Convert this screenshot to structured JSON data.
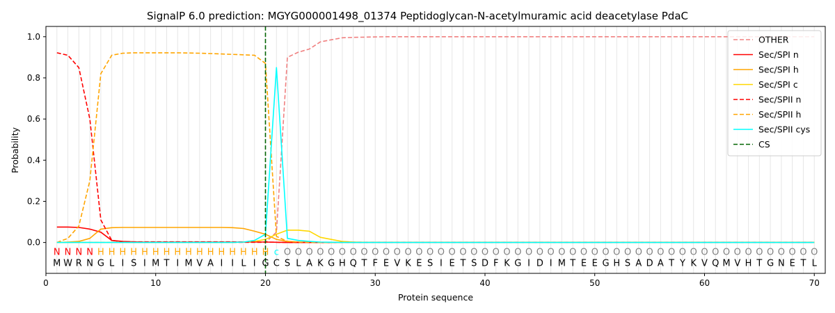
{
  "chart_data": {
    "type": "line",
    "title": "SignalP 6.0 prediction: MGYG000001498_01374 Peptidoglycan-N-acetylmuramic acid deacetylase PdaC",
    "xlabel": "Protein sequence",
    "ylabel": "Probability",
    "xlim": [
      0,
      71
    ],
    "ylim": [
      -0.15,
      1.05
    ],
    "xticks": [
      0,
      10,
      20,
      30,
      40,
      50,
      60,
      70
    ],
    "xtick_labels": [
      "0",
      "10",
      "20",
      "30",
      "40",
      "50",
      "60",
      "70"
    ],
    "yticks": [
      0.0,
      0.2,
      0.4,
      0.6,
      0.8,
      1.0
    ],
    "ytick_labels": [
      "0.0",
      "0.2",
      "0.4",
      "0.6",
      "0.8",
      "1.0"
    ],
    "grid": "vertical lines at each residue",
    "legend_position": "top-right",
    "sequence": [
      "M",
      "W",
      "R",
      "N",
      "G",
      "L",
      "I",
      "S",
      "I",
      "M",
      "T",
      "I",
      "M",
      "V",
      "A",
      "I",
      "I",
      "L",
      "I",
      "G",
      "C",
      "S",
      "L",
      "A",
      "K",
      "G",
      "H",
      "Q",
      "T",
      "F",
      "E",
      "V",
      "K",
      "E",
      "S",
      "I",
      "E",
      "T",
      "S",
      "D",
      "F",
      "K",
      "G",
      "I",
      "D",
      "I",
      "M",
      "T",
      "E",
      "E",
      "G",
      "H",
      "S",
      "A",
      "D",
      "A",
      "T",
      "Y",
      "K",
      "V",
      "Q",
      "M",
      "V",
      "H",
      "T",
      "G",
      "N",
      "E",
      "T",
      "L"
    ],
    "labels": [
      "N",
      "N",
      "N",
      "N",
      "H",
      "H",
      "H",
      "H",
      "H",
      "H",
      "H",
      "H",
      "H",
      "H",
      "H",
      "H",
      "H",
      "H",
      "H",
      "H",
      "c",
      "O",
      "O",
      "O",
      "O",
      "O",
      "O",
      "O",
      "O",
      "O",
      "O",
      "O",
      "O",
      "O",
      "O",
      "O",
      "O",
      "O",
      "O",
      "O",
      "O",
      "O",
      "O",
      "O",
      "O",
      "O",
      "O",
      "O",
      "O",
      "O",
      "O",
      "O",
      "O",
      "O",
      "O",
      "O",
      "O",
      "O",
      "O",
      "O",
      "O",
      "O",
      "O",
      "O",
      "O",
      "O",
      "O",
      "O",
      "O",
      "O"
    ],
    "label_colors": {
      "N": "#ff0000",
      "H": "#ffa500",
      "c": "#00ffff",
      "O": "#808080"
    },
    "cleavage_site": 20,
    "series": [
      {
        "name": "OTHER",
        "color": "#f08080",
        "dash": "dashed",
        "values": [
          0.0,
          0.0,
          0.0,
          0.0,
          0.0,
          0.0,
          0.0,
          0.0,
          0.0,
          0.0,
          0.0,
          0.0,
          0.0,
          0.0,
          0.0,
          0.0,
          0.0,
          0.0,
          0.0,
          0.0,
          0.05,
          0.9,
          0.925,
          0.94,
          0.975,
          0.985,
          0.995,
          0.997,
          0.998,
          0.999,
          1.0,
          1.0,
          1.0,
          1.0,
          1.0,
          1.0,
          1.0,
          1.0,
          1.0,
          1.0,
          1.0,
          1.0,
          1.0,
          1.0,
          1.0,
          1.0,
          1.0,
          1.0,
          1.0,
          1.0,
          1.0,
          1.0,
          1.0,
          1.0,
          1.0,
          1.0,
          1.0,
          1.0,
          1.0,
          1.0,
          1.0,
          1.0,
          1.0,
          1.0,
          1.0,
          1.0,
          1.0,
          1.0,
          1.0,
          1.0
        ]
      },
      {
        "name": "Sec/SPI n",
        "color": "#ff0000",
        "dash": "solid",
        "values": [
          0.075,
          0.075,
          0.073,
          0.065,
          0.05,
          0.01,
          0.005,
          0.003,
          0.002,
          0.002,
          0.002,
          0.002,
          0.002,
          0.002,
          0.002,
          0.002,
          0.002,
          0.002,
          0.002,
          0.002,
          0.001,
          0.0,
          0.0,
          0.0,
          0.0,
          0.0,
          0.0,
          0.0,
          0.0,
          0.0,
          0.0,
          0.0,
          0.0,
          0.0,
          0.0,
          0.0,
          0.0,
          0.0,
          0.0,
          0.0,
          0.0,
          0.0,
          0.0,
          0.0,
          0.0,
          0.0,
          0.0,
          0.0,
          0.0,
          0.0,
          0.0,
          0.0,
          0.0,
          0.0,
          0.0,
          0.0,
          0.0,
          0.0,
          0.0,
          0.0,
          0.0,
          0.0,
          0.0,
          0.0,
          0.0,
          0.0,
          0.0,
          0.0,
          0.0,
          0.0
        ]
      },
      {
        "name": "Sec/SPI h",
        "color": "#ffa500",
        "dash": "solid",
        "values": [
          0.0,
          0.002,
          0.005,
          0.02,
          0.065,
          0.072,
          0.073,
          0.073,
          0.073,
          0.073,
          0.073,
          0.073,
          0.073,
          0.073,
          0.073,
          0.073,
          0.072,
          0.068,
          0.055,
          0.04,
          0.015,
          0.005,
          0.002,
          0.001,
          0.0,
          0.0,
          0.0,
          0.0,
          0.0,
          0.0,
          0.0,
          0.0,
          0.0,
          0.0,
          0.0,
          0.0,
          0.0,
          0.0,
          0.0,
          0.0,
          0.0,
          0.0,
          0.0,
          0.0,
          0.0,
          0.0,
          0.0,
          0.0,
          0.0,
          0.0,
          0.0,
          0.0,
          0.0,
          0.0,
          0.0,
          0.0,
          0.0,
          0.0,
          0.0,
          0.0,
          0.0,
          0.0,
          0.0,
          0.0,
          0.0,
          0.0,
          0.0,
          0.0,
          0.0,
          0.0
        ]
      },
      {
        "name": "Sec/SPI c",
        "color": "#ffd700",
        "dash": "solid",
        "values": [
          0.0,
          0.0,
          0.0,
          0.0,
          0.0,
          0.0,
          0.0,
          0.0,
          0.0,
          0.0,
          0.0,
          0.0,
          0.0,
          0.0,
          0.0,
          0.0,
          0.0,
          0.002,
          0.005,
          0.015,
          0.04,
          0.06,
          0.06,
          0.055,
          0.025,
          0.015,
          0.005,
          0.002,
          0.001,
          0.0,
          0.0,
          0.0,
          0.0,
          0.0,
          0.0,
          0.0,
          0.0,
          0.0,
          0.0,
          0.0,
          0.0,
          0.0,
          0.0,
          0.0,
          0.0,
          0.0,
          0.0,
          0.0,
          0.0,
          0.0,
          0.0,
          0.0,
          0.0,
          0.0,
          0.0,
          0.0,
          0.0,
          0.0,
          0.0,
          0.0,
          0.0,
          0.0,
          0.0,
          0.0,
          0.0,
          0.0,
          0.0,
          0.0,
          0.0,
          0.0
        ]
      },
      {
        "name": "Sec/SPII n",
        "color": "#ff0000",
        "dash": "dashed",
        "values": [
          0.922,
          0.91,
          0.85,
          0.6,
          0.11,
          0.01,
          0.004,
          0.003,
          0.003,
          0.003,
          0.003,
          0.003,
          0.003,
          0.003,
          0.003,
          0.003,
          0.003,
          0.002,
          0.002,
          0.002,
          0.001,
          0.0,
          0.0,
          0.0,
          0.0,
          0.0,
          0.0,
          0.0,
          0.0,
          0.0,
          0.0,
          0.0,
          0.0,
          0.0,
          0.0,
          0.0,
          0.0,
          0.0,
          0.0,
          0.0,
          0.0,
          0.0,
          0.0,
          0.0,
          0.0,
          0.0,
          0.0,
          0.0,
          0.0,
          0.0,
          0.0,
          0.0,
          0.0,
          0.0,
          0.0,
          0.0,
          0.0,
          0.0,
          0.0,
          0.0,
          0.0,
          0.0,
          0.0,
          0.0,
          0.0,
          0.0,
          0.0,
          0.0,
          0.0,
          0.0
        ]
      },
      {
        "name": "Sec/SPII h",
        "color": "#ffa500",
        "dash": "dashed",
        "values": [
          0.0,
          0.02,
          0.08,
          0.3,
          0.82,
          0.91,
          0.92,
          0.922,
          0.922,
          0.922,
          0.922,
          0.922,
          0.921,
          0.92,
          0.918,
          0.916,
          0.914,
          0.912,
          0.91,
          0.87,
          0.03,
          0.005,
          0.002,
          0.001,
          0.0,
          0.0,
          0.0,
          0.0,
          0.0,
          0.0,
          0.0,
          0.0,
          0.0,
          0.0,
          0.0,
          0.0,
          0.0,
          0.0,
          0.0,
          0.0,
          0.0,
          0.0,
          0.0,
          0.0,
          0.0,
          0.0,
          0.0,
          0.0,
          0.0,
          0.0,
          0.0,
          0.0,
          0.0,
          0.0,
          0.0,
          0.0,
          0.0,
          0.0,
          0.0,
          0.0,
          0.0,
          0.0,
          0.0,
          0.0,
          0.0,
          0.0,
          0.0,
          0.0,
          0.0,
          0.0
        ]
      },
      {
        "name": "Sec/SPII cys",
        "color": "#00ffff",
        "dash": "solid",
        "values": [
          0.0,
          0.0,
          0.0,
          0.0,
          0.0,
          0.0,
          0.0,
          0.0,
          0.0,
          0.0,
          0.0,
          0.0,
          0.0,
          0.0,
          0.0,
          0.0,
          0.0,
          0.002,
          0.01,
          0.04,
          0.85,
          0.02,
          0.01,
          0.005,
          0.002,
          0.001,
          0.0,
          0.0,
          0.0,
          0.0,
          0.0,
          0.0,
          0.0,
          0.0,
          0.0,
          0.0,
          0.0,
          0.0,
          0.0,
          0.0,
          0.0,
          0.0,
          0.0,
          0.0,
          0.0,
          0.0,
          0.0,
          0.0,
          0.0,
          0.0,
          0.0,
          0.0,
          0.0,
          0.0,
          0.0,
          0.0,
          0.0,
          0.0,
          0.0,
          0.0,
          0.0,
          0.0,
          0.0,
          0.0,
          0.0,
          0.0,
          0.0,
          0.0,
          0.0,
          0.0
        ]
      }
    ],
    "cs_legend": {
      "name": "CS",
      "color": "#006400",
      "dash": "dashed"
    }
  }
}
